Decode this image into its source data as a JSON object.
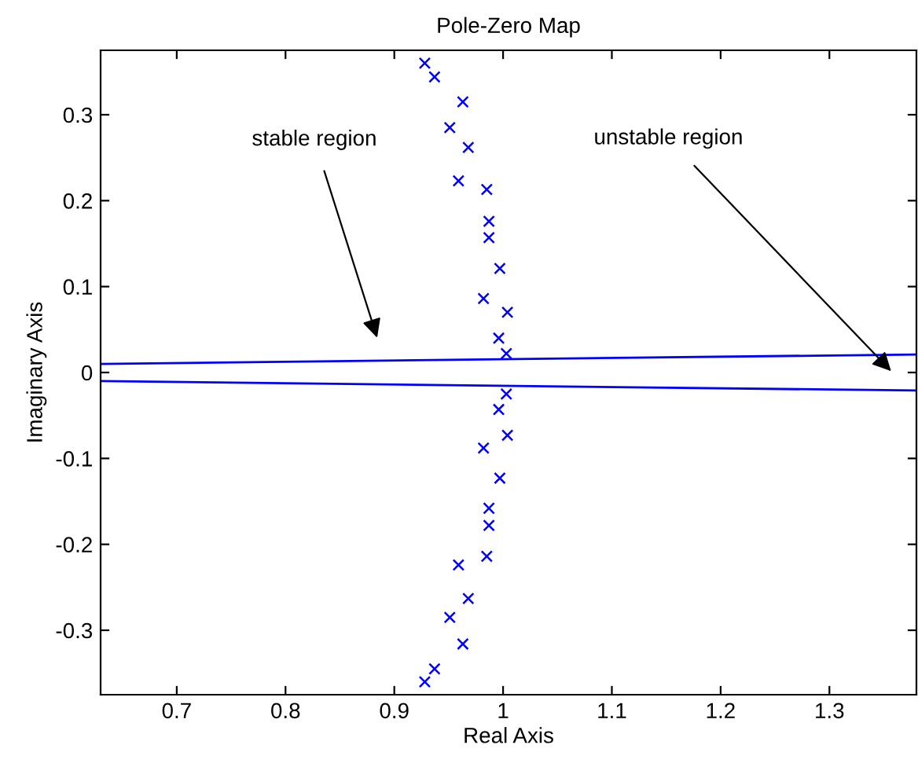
{
  "chart_data": {
    "type": "scatter",
    "title": "Pole-Zero Map",
    "xlabel": "Real Axis",
    "ylabel": "Imaginary Axis",
    "xlim": [
      0.63,
      1.38
    ],
    "ylim": [
      -0.375,
      0.375
    ],
    "xticks": [
      0.7,
      0.8,
      0.9,
      1,
      1.1,
      1.2,
      1.3
    ],
    "yticks": [
      -0.3,
      -0.2,
      -0.1,
      0,
      0.1,
      0.2,
      0.3
    ],
    "grid": false,
    "legend": false,
    "series": [
      {
        "marker": "cross",
        "color": "#0000ff",
        "x": [
          0.928,
          0.937,
          0.963,
          0.951,
          0.968,
          0.959,
          0.985,
          0.987,
          0.987,
          0.997,
          0.982,
          1.004,
          0.996,
          1.003,
          1.003,
          0.996,
          1.004,
          0.982,
          0.997,
          0.987,
          0.987,
          0.985,
          0.959,
          0.968,
          0.951,
          0.963,
          0.937,
          0.928
        ],
        "values": [
          0.36,
          0.344,
          0.315,
          0.285,
          0.262,
          0.223,
          0.213,
          0.176,
          0.157,
          0.121,
          0.086,
          0.07,
          0.04,
          0.022,
          -0.025,
          -0.043,
          -0.073,
          -0.088,
          -0.123,
          -0.158,
          -0.178,
          -0.214,
          -0.224,
          -0.263,
          -0.285,
          -0.316,
          -0.345,
          -0.36
        ]
      },
      {
        "type": "line",
        "color": "#0000ff",
        "x": [
          0.63,
          1.38
        ],
        "values": [
          0.01,
          0.021
        ]
      },
      {
        "type": "line",
        "color": "#0000ff",
        "x": [
          0.63,
          1.38
        ],
        "values": [
          -0.01,
          -0.021
        ]
      }
    ],
    "annotations": [
      "stable region",
      "unstable region"
    ]
  }
}
